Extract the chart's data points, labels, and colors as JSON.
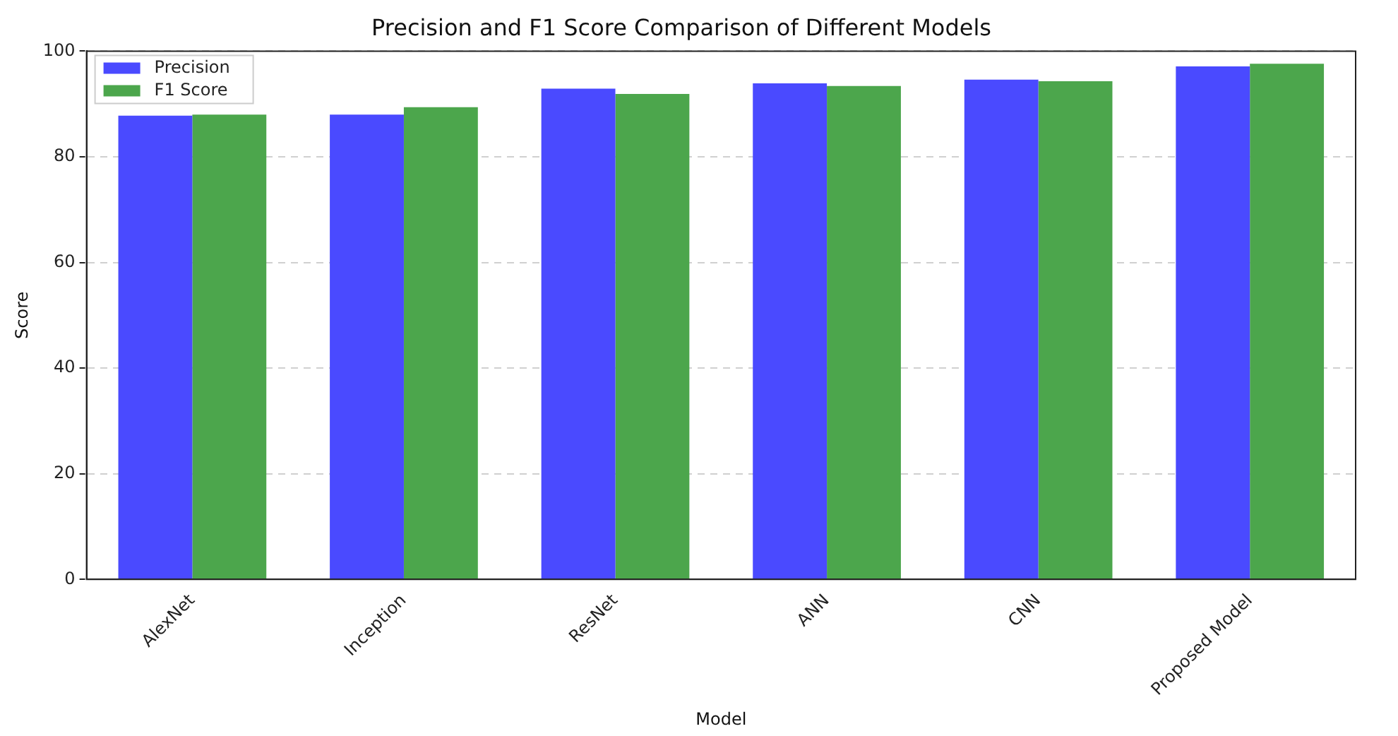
{
  "chart_data": {
    "type": "bar",
    "title": "Precision and F1 Score Comparison of Different Models",
    "xlabel": "Model",
    "ylabel": "Score",
    "categories": [
      "AlexNet",
      "Inception",
      "ResNet",
      "ANN",
      "CNN",
      "Proposed Model"
    ],
    "series": [
      {
        "name": "Precision",
        "color": "#4a4aff",
        "values": [
          87.8,
          88,
          92.9,
          93.9,
          94.6,
          97.1
        ]
      },
      {
        "name": "F1 Score",
        "color": "#4ca64c",
        "values": [
          88,
          89.4,
          91.9,
          93.4,
          94.3,
          97.6
        ]
      }
    ],
    "ylim": [
      0,
      100
    ],
    "yticks": [
      0,
      20,
      40,
      60,
      80,
      100
    ],
    "grid": "y",
    "legend": "top left"
  }
}
